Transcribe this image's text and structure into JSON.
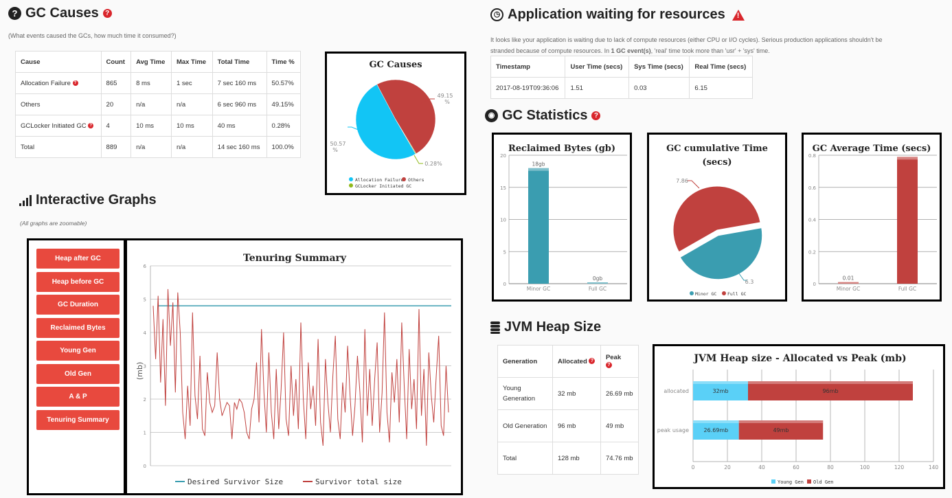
{
  "gc_causes": {
    "title": "GC Causes",
    "subtitle": "(What events caused the GCs, how much time it consumed?)",
    "headers": [
      "Cause",
      "Count",
      "Avg Time",
      "Max Time",
      "Total Time",
      "Time %"
    ],
    "rows": [
      [
        "Allocation Failure",
        "865",
        "8 ms",
        "1 sec",
        "7 sec 160 ms",
        "50.57%"
      ],
      [
        "Others",
        "20",
        "n/a",
        "n/a",
        "6 sec 960 ms",
        "49.15%"
      ],
      [
        "GCLocker Initiated GC",
        "4",
        "10 ms",
        "10 ms",
        "40 ms",
        "0.28%"
      ],
      [
        "Total",
        "889",
        "n/a",
        "n/a",
        "14 sec 160 ms",
        "100.0%"
      ]
    ]
  },
  "app_waiting": {
    "title": "Application waiting for resources",
    "text1": "It looks like your application is waiting due to lack of compute resources (either CPU or I/O cycles). Serious production applications shouldn't be",
    "text2a": "stranded because of compute resources. In ",
    "text2b": "1 GC event(s)",
    "text2c": ", 'real' time took more than 'usr' + 'sys' time.",
    "headers": [
      "Timestamp",
      "User Time (secs)",
      "Sys Time (secs)",
      "Real Time (secs)"
    ],
    "row": [
      "2017-08-19T09:36:06",
      "1.51",
      "0.03",
      "6.15"
    ]
  },
  "gc_statistics": {
    "title": "GC Statistics"
  },
  "interactive": {
    "title": "Interactive Graphs",
    "note": "(All graphs are zoomable)",
    "buttons": [
      "Heap after GC",
      "Heap before GC",
      "GC Duration",
      "Reclaimed Bytes",
      "Young Gen",
      "Old Gen",
      "A & P",
      "Tenuring Summary"
    ]
  },
  "jvm_heap": {
    "title": "JVM Heap Size",
    "headers": [
      "Generation",
      "Allocated",
      "Peak"
    ],
    "rows": [
      [
        "Young Generation",
        "32 mb",
        "26.69 mb"
      ],
      [
        "Old Generation",
        "96 mb",
        "49 mb"
      ],
      [
        "Total",
        "128 mb",
        "74.76 mb"
      ]
    ]
  },
  "colors": {
    "red": "#c0413e",
    "cyan": "#12c5f5",
    "teal": "#3a9db0",
    "green": "#8fb81a",
    "lightblue": "#5ad0f7",
    "button": "#e8493e"
  },
  "chart_data": [
    {
      "type": "pie",
      "title": "GC Causes",
      "labels": [
        "Allocation Failure",
        "Others",
        "GCLocker Initiated GC"
      ],
      "values": [
        50.57,
        49.15,
        0.28
      ],
      "value_labels": [
        "50.57 %",
        "49.15 %",
        "0.28%"
      ],
      "legend": "bottom"
    },
    {
      "type": "bar",
      "title": "Reclaimed Bytes (gb)",
      "categories": [
        "Minor GC",
        "Full GC"
      ],
      "values": [
        18,
        0
      ],
      "data_labels": [
        "18gb",
        "0gb"
      ],
      "ylim": [
        0,
        20
      ],
      "yticks": [
        "0",
        "5",
        "10",
        "15",
        "20"
      ]
    },
    {
      "type": "pie",
      "title": "GC cumulative Time (secs)",
      "labels": [
        "Minor GC",
        "Full GC"
      ],
      "values": [
        6.3,
        7.86
      ],
      "value_labels": [
        "6.3",
        "7.86"
      ],
      "legend": "bottom"
    },
    {
      "type": "bar",
      "title": "GC Average Time (secs)",
      "categories": [
        "Minor GC",
        "Full GC"
      ],
      "values": [
        0.01,
        0.79
      ],
      "data_labels": [
        "0.01",
        ""
      ],
      "ylim": [
        0,
        0.8
      ],
      "yticks": [
        "0",
        "0.2",
        "0.4",
        "0.6",
        "0.8"
      ]
    },
    {
      "type": "line",
      "title": "Tenuring Summary",
      "ylabel": "(mb)",
      "ylim": [
        0,
        6
      ],
      "yticks": [
        "0",
        "1",
        "2",
        "3",
        "4",
        "5",
        "6"
      ],
      "series": [
        {
          "name": "Desired Survivor Size",
          "constant": 4.8
        },
        {
          "name": "Survivor total size",
          "values": [
            4.8,
            3.2,
            5.1,
            2.5,
            4.4,
            1.8,
            5.3,
            3.6,
            4.9,
            2.2,
            5.2,
            4.0,
            1.6,
            0.8,
            2.4,
            1.2,
            4.6,
            2.1,
            1.4,
            3.3,
            1.1,
            0.9,
            2.8,
            1.9,
            1.6,
            1.8,
            3.4,
            2.0,
            1.5,
            1.7,
            1.9,
            1.8,
            0.8,
            1.9,
            1.7,
            2.0,
            1.9,
            1.6,
            1.0,
            0.8,
            1.7,
            2.0,
            3.1,
            1.3,
            4.1,
            2.2,
            1.0,
            3.4,
            1.6,
            0.8,
            2.9,
            1.1,
            2.3,
            4.0,
            1.4,
            0.9,
            3.0,
            1.5,
            2.6,
            1.1,
            4.3,
            2.0,
            0.8,
            3.1,
            1.7,
            2.4,
            1.2,
            3.8,
            1.3,
            0.6,
            3.2,
            1.9,
            1.0,
            2.7,
            3.9,
            1.4,
            0.8,
            2.5,
            1.6,
            3.6,
            2.1,
            0.9,
            1.8,
            3.3,
            2.2,
            0.7,
            4.1,
            1.5,
            2.9,
            1.2,
            2.6,
            3.7,
            1.0,
            2.2,
            4.6,
            1.6,
            0.7,
            2.8,
            1.9,
            3.2,
            1.3,
            4.3,
            2.4,
            0.8,
            3.5,
            1.7,
            2.6,
            1.1,
            4.7,
            1.5,
            2.9,
            0.6,
            3.4,
            2.1,
            1.3,
            2.7,
            3.9,
            1.2,
            0.9,
            3.0,
            1.6
          ]
        }
      ]
    },
    {
      "type": "bar",
      "orientation": "horizontal",
      "stacked": true,
      "title": "JVM Heap size - Allocated vs Peak (mb)",
      "categories": [
        "allocated",
        "peak usage"
      ],
      "series": [
        {
          "name": "Young Gen",
          "values": [
            32,
            26.69
          ],
          "labels": [
            "32mb",
            "26.69mb"
          ]
        },
        {
          "name": "Old Gen",
          "values": [
            96,
            49
          ],
          "labels": [
            "96mb",
            "49mb"
          ]
        }
      ],
      "xlim": [
        0,
        140
      ],
      "xticks": [
        "0",
        "20",
        "40",
        "60",
        "80",
        "100",
        "120",
        "140"
      ]
    }
  ]
}
